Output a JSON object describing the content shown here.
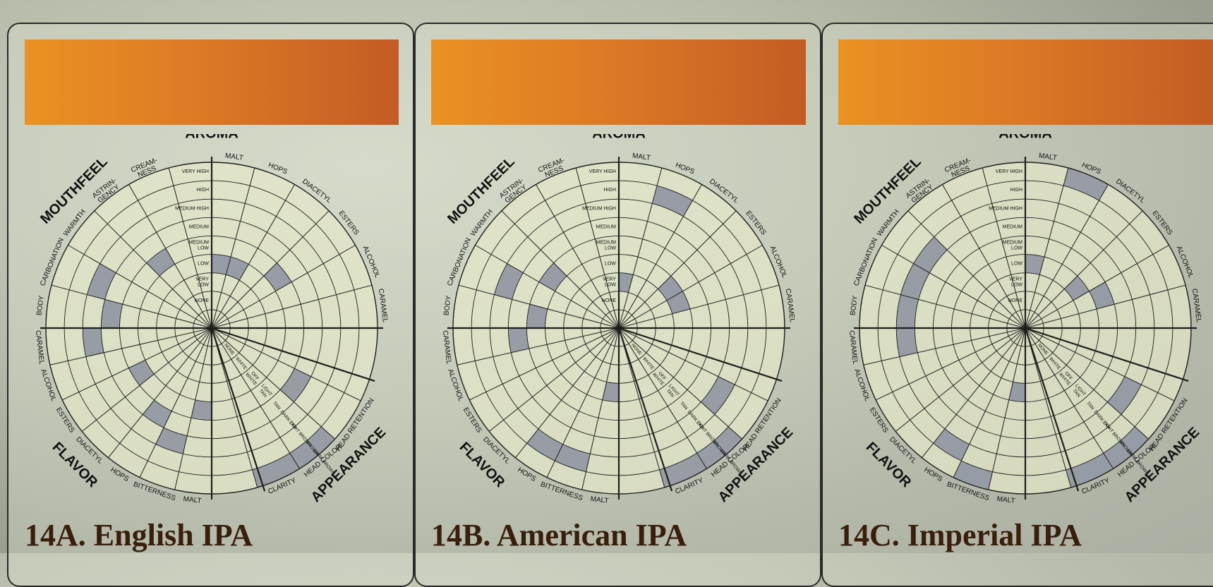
{
  "panels": [
    {
      "title": "14A. English IPA",
      "values": {
        "MALT": 3,
        "HOPS": 3,
        "DIACETYL": 0,
        "ESTERS": 4,
        "ALCOHOL": 0,
        "CARAMEL": 0,
        "CLARITY": 8,
        "HEAD COLOR": 8,
        "HEAD RETENTION": 5,
        "MALT_F": 4,
        "BITTERNESS": 6,
        "HOPS_F": 5,
        "DIACETYL_F": 0,
        "ESTERS_F": 4,
        "ALCOHOL_F": 0,
        "CARAMEL_F": 6,
        "BODY": 5,
        "CARBONATION": 6,
        "WARMTH": 0,
        "ASTRINGENCY": 4,
        "CREAMINESS": 0
      }
    },
    {
      "title": "14B. American IPA",
      "values": {
        "MALT": 2,
        "HOPS": 7,
        "DIACETYL": 0,
        "ESTERS": 3,
        "ALCOHOL": 3,
        "CARAMEL": 0,
        "CLARITY": 8,
        "HEAD COLOR": 8,
        "HEAD RETENTION": 6,
        "MALT_F": 3,
        "BITTERNESS": 7,
        "HOPS_F": 7,
        "DIACETYL_F": 0,
        "ESTERS_F": 0,
        "ALCOHOL_F": 0,
        "CARAMEL_F": 5,
        "BODY": 4,
        "CARBONATION": 6,
        "WARMTH": 4,
        "ASTRINGENCY": 0,
        "CREAMINESS": 0
      }
    },
    {
      "title": "14C. Imperial IPA",
      "values": {
        "MALT": 3,
        "HOPS": 8,
        "DIACETYL": 0,
        "ESTERS": 3,
        "ALCOHOL": 4,
        "CARAMEL": 0,
        "CLARITY": 8,
        "HEAD COLOR": 8,
        "HEAD RETENTION": 6,
        "MALT_F": 3,
        "BITTERNESS": 8,
        "HOPS_F": 7,
        "DIACETYL_F": 0,
        "ESTERS_F": 0,
        "ALCOHOL_F": 0,
        "CARAMEL_F": 6,
        "BODY": 6,
        "CARBONATION": 6,
        "WARMTH": 6,
        "ASTRINGENCY": 0,
        "CREAMINESS": 0
      }
    }
  ],
  "wheel": {
    "sections": [
      "AROMA",
      "APPEARANCE",
      "FLAVOR",
      "MOUTHFEEL"
    ],
    "spokes": [
      "MALT",
      "HOPS",
      "DIACETYL",
      "ESTERS",
      "ALCOHOL",
      "CARAMEL",
      "CLARITY",
      "HEAD COLOR",
      "HEAD RETENTION",
      "MALT",
      "BITTERNESS",
      "HOPS",
      "DIACETYL",
      "ESTERS",
      "ALCOHOL",
      "CARAMEL",
      "BODY",
      "CARBONATION",
      "WARMTH",
      "ASTRIN-|GENCY",
      "CREAM-|NESS"
    ],
    "keys": [
      "MALT",
      "HOPS",
      "DIACETYL",
      "ESTERS",
      "ALCOHOL",
      "CARAMEL",
      "CLARITY",
      "HEAD COLOR",
      "HEAD RETENTION",
      "MALT_F",
      "BITTERNESS",
      "HOPS_F",
      "DIACETYL_F",
      "ESTERS_F",
      "ALCOHOL_F",
      "CARAMEL_F",
      "BODY",
      "CARBONATION",
      "WARMTH",
      "ASTRINGENCY",
      "CREAMINESS"
    ],
    "intensity_scale": [
      "NONE",
      "VERY|LOW",
      "LOW",
      "MEDIUM|LOW",
      "MEDIUM",
      "MEDIUM HIGH",
      "HIGH",
      "VERY HIGH"
    ],
    "color_scale": [
      "NONE",
      "WHITE",
      "OFF|WHITE",
      "LIGHT|TAN",
      "TAN",
      "DARK TAN",
      "LIGHT BROWN",
      "BROWN",
      "DARK BROWN"
    ]
  },
  "colors": {
    "fill": "#8f95a2",
    "line": "#1e1e1e",
    "disk": "#e4e8c8",
    "banner_start": "#ea9223",
    "banner_end": "#c45b23",
    "title": "#3a1e0c"
  }
}
